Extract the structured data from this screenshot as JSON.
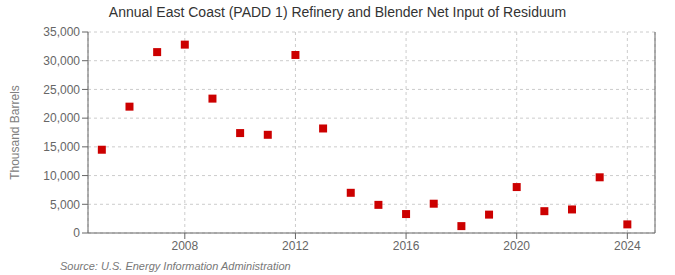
{
  "chart_data": {
    "type": "scatter",
    "title": "Annual East Coast (PADD 1) Refinery and Blender Net Input of Residuum",
    "ylabel": "Thousand Barrels",
    "annotations": [
      "Source: U.S. Energy Information Administration"
    ],
    "x": [
      2005,
      2006,
      2007,
      2008,
      2009,
      2010,
      2011,
      2012,
      2013,
      2014,
      2015,
      2016,
      2017,
      2018,
      2019,
      2020,
      2021,
      2022,
      2023,
      2024
    ],
    "values": [
      14500,
      22000,
      31500,
      32800,
      23400,
      17400,
      17100,
      31000,
      18200,
      7000,
      4900,
      3300,
      5100,
      1200,
      3200,
      8000,
      3800,
      4100,
      9700,
      1500
    ],
    "color": "#cc0000",
    "marker": "square",
    "xlim": [
      2004.5,
      2025.0
    ],
    "ylim": [
      0,
      35000
    ],
    "xticks": [
      2008,
      2012,
      2016,
      2020,
      2024
    ],
    "yticks": [
      0,
      {
        "value": 5000,
        "label": "5,000"
      },
      {
        "value": 10000,
        "label": "10,000"
      },
      {
        "value": 15000,
        "label": "15,000"
      },
      {
        "value": 20000,
        "label": "20,000"
      },
      {
        "value": 25000,
        "label": "25,000"
      },
      {
        "value": 30000,
        "label": "30,000"
      },
      {
        "value": 35000,
        "label": "35,000"
      }
    ],
    "grid": true
  }
}
